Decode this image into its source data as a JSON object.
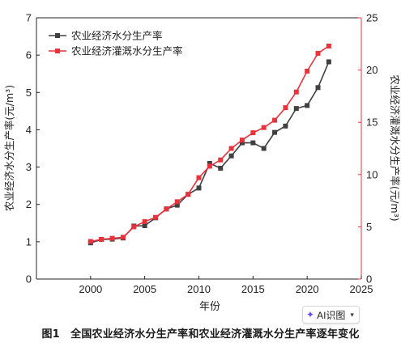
{
  "chart_data": {
    "type": "line",
    "title": "",
    "xlabel": "年份",
    "ylabel_left": "农业经济水分生产率(元/m³)",
    "ylabel_right": "农业经济灌溉水分生产率(元/m³)",
    "xlim": [
      1995,
      2025
    ],
    "ylim_left": [
      0,
      7
    ],
    "ylim_right": [
      0,
      25
    ],
    "x_ticks": [
      2000,
      2005,
      2010,
      2015,
      2020,
      2025
    ],
    "y_ticks_left": [
      0,
      1,
      2,
      3,
      4,
      5,
      6,
      7
    ],
    "y_ticks_right": [
      0,
      5,
      10,
      15,
      20,
      25
    ],
    "legend_position": "top-left",
    "grid": false,
    "x": [
      2000,
      2001,
      2002,
      2003,
      2004,
      2005,
      2006,
      2007,
      2008,
      2009,
      2010,
      2011,
      2012,
      2013,
      2014,
      2015,
      2016,
      2017,
      2018,
      2019,
      2020,
      2021,
      2022
    ],
    "series": [
      {
        "name": "农业经济水分生产率",
        "axis": "left",
        "color": "#404040",
        "marker": "square",
        "values": [
          0.97,
          1.06,
          1.07,
          1.1,
          1.42,
          1.43,
          1.64,
          1.88,
          1.98,
          2.27,
          2.44,
          3.1,
          2.97,
          3.3,
          3.65,
          3.65,
          3.5,
          3.93,
          4.1,
          4.57,
          4.65,
          5.13,
          5.82
        ]
      },
      {
        "name": "农业经济灌溉水分生产率",
        "axis": "right",
        "color": "#e8333c",
        "marker": "square",
        "values": [
          3.6,
          3.8,
          3.9,
          4.0,
          5.0,
          5.5,
          5.9,
          6.7,
          7.4,
          8.1,
          9.7,
          10.8,
          11.4,
          12.5,
          13.3,
          14.0,
          14.5,
          15.2,
          16.4,
          17.9,
          19.9,
          21.6,
          22.3
        ]
      }
    ]
  },
  "badge": {
    "label": "AI识图",
    "icon": "sparkle-icon",
    "chevron": "chevron-down-icon"
  },
  "caption": "图1　全国农业经济水分生产率和农业经济灌溉水分生产率逐年变化"
}
